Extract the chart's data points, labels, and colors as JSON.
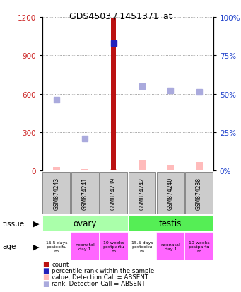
{
  "title": "GDS4503 / 1451371_at",
  "samples": [
    "GSM874243",
    "GSM874241",
    "GSM874239",
    "GSM874242",
    "GSM874240",
    "GSM874238"
  ],
  "count_values": [
    0,
    0,
    1190,
    0,
    0,
    0
  ],
  "percentile_rank": [
    null,
    null,
    83,
    null,
    null,
    null
  ],
  "value_absent": [
    30,
    10,
    10,
    80,
    40,
    70
  ],
  "rank_absent_pct": [
    46,
    21,
    null,
    55,
    52,
    51
  ],
  "ylim_left": [
    0,
    1200
  ],
  "ylim_right": [
    0,
    100
  ],
  "yticks_left": [
    0,
    300,
    600,
    900,
    1200
  ],
  "yticks_right": [
    0,
    25,
    50,
    75,
    100
  ],
  "tissue_labels": [
    [
      "ovary",
      0,
      3
    ],
    [
      "testis",
      3,
      6
    ]
  ],
  "tissue_color_ovary": "#aaffaa",
  "tissue_color_testis": "#55ee55",
  "age_labels": [
    "15.5 days\npostcoitu\nm",
    "neonatal\nday 1",
    "10 weeks\npostpartu\nm",
    "15.5 days\npostcoitu\nm",
    "neonatal\nday 1",
    "10 weeks\npostpartu\nm"
  ],
  "age_colors": [
    "#ffffff",
    "#ff66ff",
    "#ff66ff",
    "#ffffff",
    "#ff66ff",
    "#ff66ff"
  ],
  "bar_color": "#bb1111",
  "percentile_color": "#2222bb",
  "value_absent_color": "#ffbbbb",
  "rank_absent_color": "#aaaadd",
  "sample_box_color": "#cccccc",
  "left_axis_color": "#cc2222",
  "right_axis_color": "#2244cc",
  "grid_color": "#888888",
  "legend_items": [
    [
      "#bb1111",
      "count"
    ],
    [
      "#2222bb",
      "percentile rank within the sample"
    ],
    [
      "#ffbbbb",
      "value, Detection Call = ABSENT"
    ],
    [
      "#aaaadd",
      "rank, Detection Call = ABSENT"
    ]
  ]
}
